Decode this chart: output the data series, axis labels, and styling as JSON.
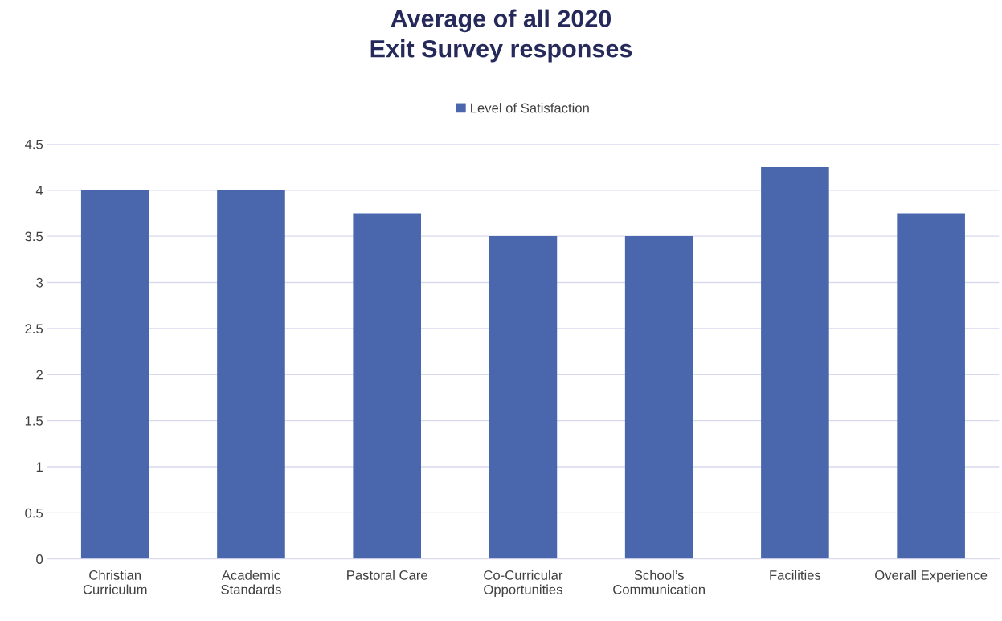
{
  "chart_data": {
    "type": "bar",
    "title": "Average of all 2020\nExit Survey responses",
    "categories": [
      "Christian\nCurriculum",
      "Academic\nStandards",
      "Pastoral Care",
      "Co-Curricular\nOpportunities",
      "School’s\nCommunication",
      "Facilities",
      "Overall Experience"
    ],
    "series": [
      {
        "name": "Level of Satisfaction",
        "color": "#4a67ad",
        "values": [
          4,
          4,
          3.75,
          3.5,
          3.5,
          4.25,
          3.75
        ]
      }
    ],
    "ylim": [
      0,
      4.5
    ],
    "yticks": [
      0,
      0.5,
      1,
      1.5,
      2,
      2.5,
      3,
      3.5,
      4,
      4.5
    ],
    "grid": "y",
    "legend": "top"
  }
}
